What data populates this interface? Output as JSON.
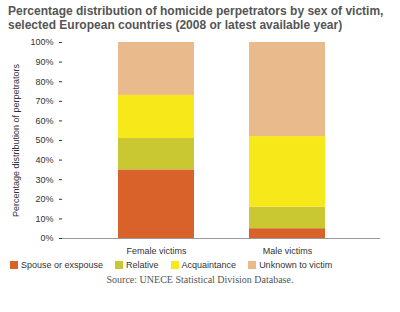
{
  "chart_data": {
    "type": "bar",
    "title": "Percentage distribution of homicide perpetrators by sex of victim, selected European countries (2008 or latest available year)",
    "y_label": "Percentage distribution of perpetrators",
    "source": "Source: UNECE Statistical Division Database.",
    "categories": [
      "Female victims",
      "Male victims"
    ],
    "series": [
      {
        "name": "Spouse or exspouse",
        "color": "#d9622b",
        "values": [
          35,
          5
        ]
      },
      {
        "name": "Relative",
        "color": "#c9c832",
        "values": [
          16,
          11
        ]
      },
      {
        "name": "Acquaintance",
        "color": "#f7e81a",
        "values": [
          22,
          36
        ]
      },
      {
        "name": "Unknown to victim",
        "color": "#e9bb8c",
        "values": [
          27,
          48
        ]
      }
    ],
    "ylim": [
      0,
      100
    ],
    "yticks": [
      {
        "value": 0,
        "label": "0%"
      },
      {
        "value": 10,
        "label": "10%"
      },
      {
        "value": 20,
        "label": "20%"
      },
      {
        "value": 30,
        "label": "30%"
      },
      {
        "value": 40,
        "label": "40%"
      },
      {
        "value": 50,
        "label": "50%"
      },
      {
        "value": 60,
        "label": "60%"
      },
      {
        "value": 70,
        "label": "70%"
      },
      {
        "value": 80,
        "label": "80%"
      },
      {
        "value": 90,
        "label": "90%"
      },
      {
        "value": 100,
        "label": "100%"
      }
    ],
    "stacked": true,
    "grid": false,
    "legend": "bottom"
  }
}
